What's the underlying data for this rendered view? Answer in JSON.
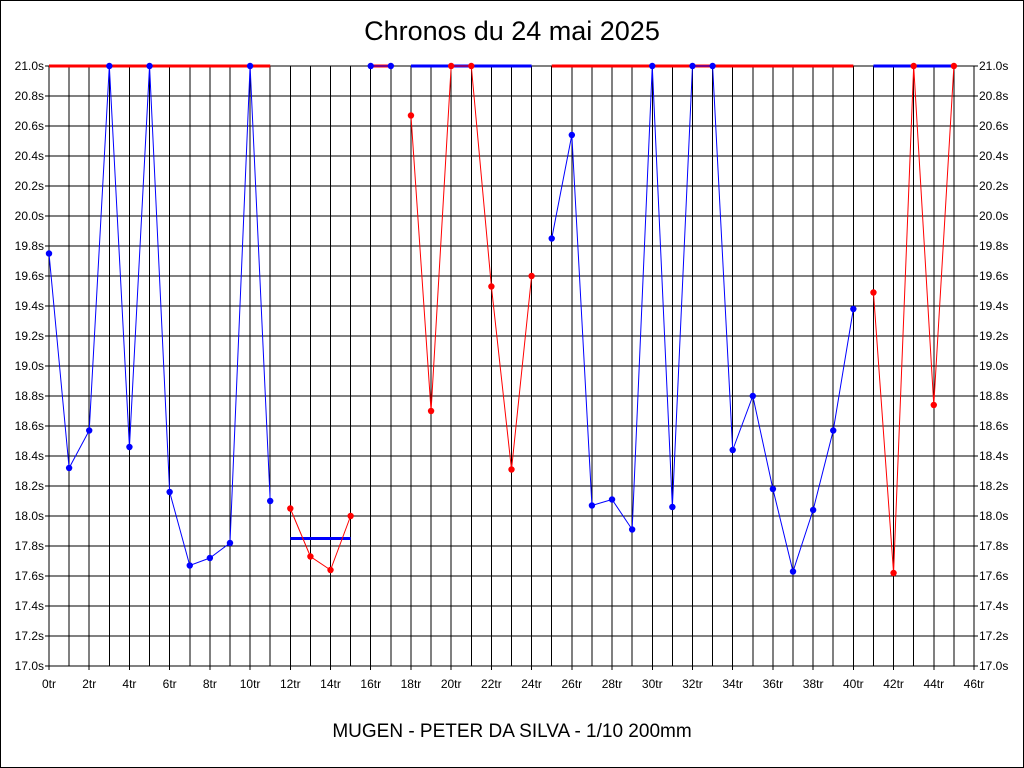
{
  "chart_data": {
    "type": "line",
    "title": "Chronos du 24 mai 2025",
    "subtitle": "MUGEN - PETER DA SILVA - 1/10 200mm",
    "xlabel": "",
    "ylabel": "",
    "xlim": [
      0,
      46
    ],
    "ylim": [
      17.0,
      21.0
    ],
    "x_tick_labels": [
      "0tr",
      "2tr",
      "4tr",
      "6tr",
      "8tr",
      "10tr",
      "12tr",
      "14tr",
      "16tr",
      "18tr",
      "20tr",
      "22tr",
      "24tr",
      "26tr",
      "28tr",
      "30tr",
      "32tr",
      "34tr",
      "36tr",
      "38tr",
      "40tr",
      "42tr",
      "44tr",
      "46tr"
    ],
    "y_tick_labels": [
      "17.0s",
      "17.2s",
      "17.4s",
      "17.6s",
      "17.8s",
      "18.0s",
      "18.2s",
      "18.4s",
      "18.6s",
      "18.8s",
      "19.0s",
      "19.2s",
      "19.4s",
      "19.6s",
      "19.8s",
      "20.0s",
      "20.2s",
      "20.4s",
      "20.6s",
      "20.8s",
      "21.0s"
    ],
    "grid": true,
    "colors": {
      "blue": "#0000ff",
      "red": "#ff0000",
      "grid": "#000000"
    },
    "segments": [
      {
        "color": "blue",
        "x": [
          0,
          1,
          2,
          3,
          4,
          5,
          6,
          7,
          8,
          9,
          10,
          11
        ],
        "y": [
          19.75,
          18.32,
          18.57,
          21.0,
          18.46,
          21.0,
          18.16,
          17.67,
          17.72,
          17.82,
          21.0,
          18.1
        ]
      },
      {
        "color": "red",
        "x": [
          12,
          13,
          14,
          15
        ],
        "y": [
          18.05,
          17.73,
          17.64,
          18.0
        ]
      },
      {
        "color": "blue",
        "x": [
          16,
          17
        ],
        "y": [
          21.0,
          21.0
        ]
      },
      {
        "color": "red",
        "x": [
          18,
          19,
          20,
          21,
          22,
          23,
          24
        ],
        "y": [
          20.67,
          18.7,
          21.0,
          21.0,
          19.53,
          18.31,
          19.6
        ]
      },
      {
        "color": "blue",
        "x": [
          25,
          26,
          27,
          28,
          29,
          30,
          31,
          32,
          33,
          34,
          35,
          36,
          37,
          38,
          39,
          40
        ],
        "y": [
          19.85,
          20.54,
          18.07,
          18.11,
          17.91,
          21.0,
          18.06,
          21.0,
          21.0,
          18.44,
          18.8,
          18.18,
          17.63,
          18.04,
          18.57,
          19.38
        ]
      },
      {
        "color": "red",
        "x": [
          41,
          42,
          43,
          44,
          45
        ],
        "y": [
          19.49,
          17.62,
          21.0,
          18.74,
          21.0
        ]
      }
    ],
    "average_lines": [
      {
        "color": "red",
        "x": [
          0,
          11
        ],
        "y": 21.0
      },
      {
        "color": "blue",
        "x": [
          12,
          15
        ],
        "y": 17.85
      },
      {
        "color": "red",
        "x": [
          16,
          17
        ],
        "y": 21.0
      },
      {
        "color": "blue",
        "x": [
          18,
          24
        ],
        "y": 21.0
      },
      {
        "color": "red",
        "x": [
          25,
          40
        ],
        "y": 21.0
      },
      {
        "color": "blue",
        "x": [
          41,
          45
        ],
        "y": 21.0
      }
    ]
  }
}
